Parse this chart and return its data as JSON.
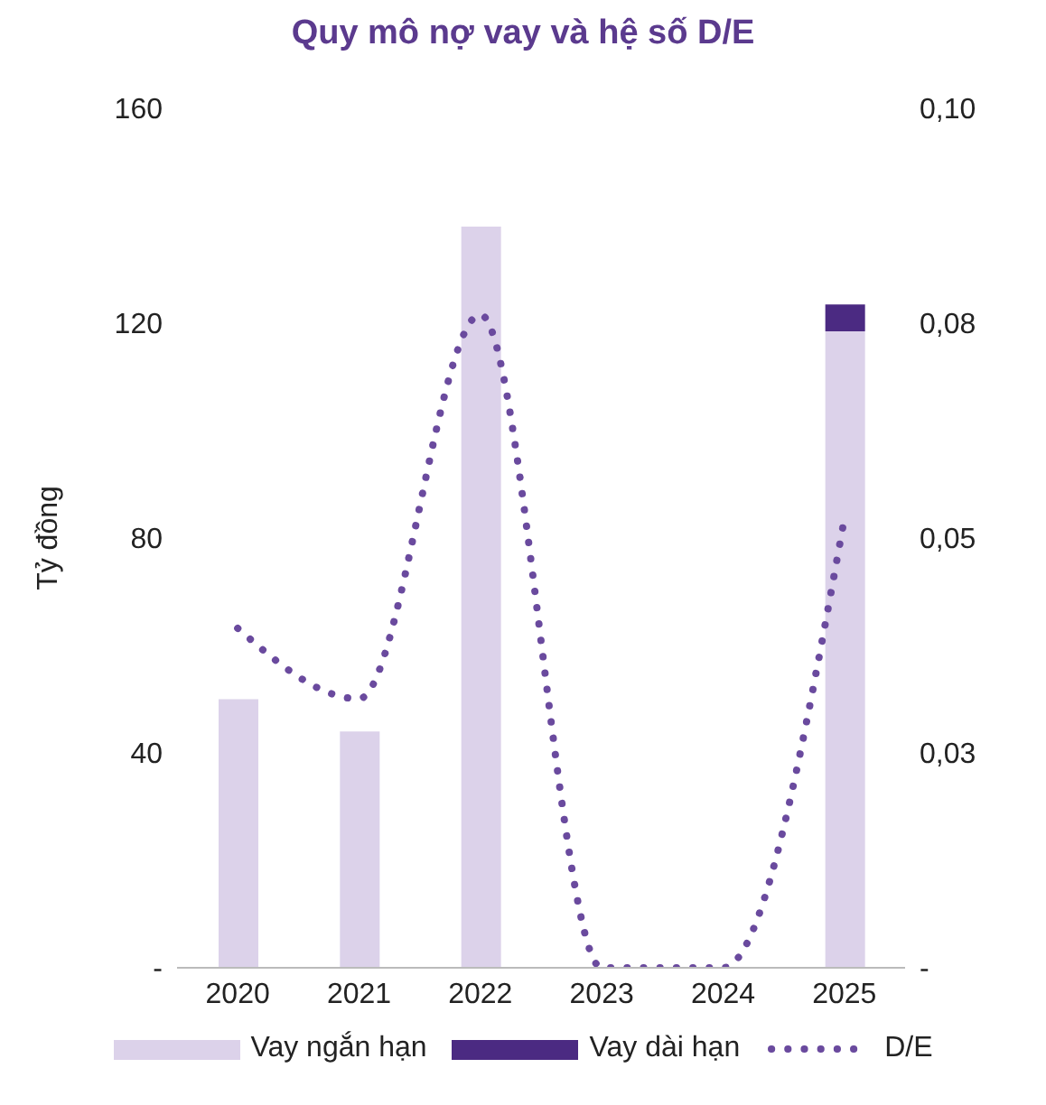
{
  "chart_data": {
    "type": "bar",
    "title": "Quy mô nợ vay và hệ số D/E",
    "ylabel": "Tỷ đồng",
    "stacked": true,
    "categories": [
      "2020",
      "2021",
      "2022",
      "2023",
      "2024",
      "2025"
    ],
    "series": [
      {
        "name": "Vay ngắn hạn",
        "color": "#dcd2ea",
        "values": [
          50,
          44,
          138,
          0,
          0,
          118.5
        ]
      },
      {
        "name": "Vay dài hạn",
        "color": "#4b2a82",
        "values": [
          0,
          0,
          0,
          0,
          0,
          5
        ]
      },
      {
        "name": "D/E",
        "type": "line",
        "axis": "y2",
        "color": "#6a4a9e",
        "line_style": "dotted",
        "marker": "none",
        "values": [
          0.0395,
          0.0313,
          0.076,
          0,
          0,
          0.0523
        ]
      }
    ],
    "ylim": [
      0,
      160
    ],
    "yticks": [
      {
        "value": 0,
        "label": "-"
      },
      40,
      80,
      120,
      160
    ],
    "y2lim": [
      0,
      0.1
    ],
    "y2ticks": [
      {
        "value": 0,
        "label": "-"
      },
      {
        "value": 0.025,
        "label": "0,03"
      },
      {
        "value": 0.05,
        "label": "0,05"
      },
      {
        "value": 0.075,
        "label": "0,08"
      },
      {
        "value": 0.1,
        "label": "0,10"
      }
    ],
    "grid": false,
    "legend": "bottom"
  }
}
